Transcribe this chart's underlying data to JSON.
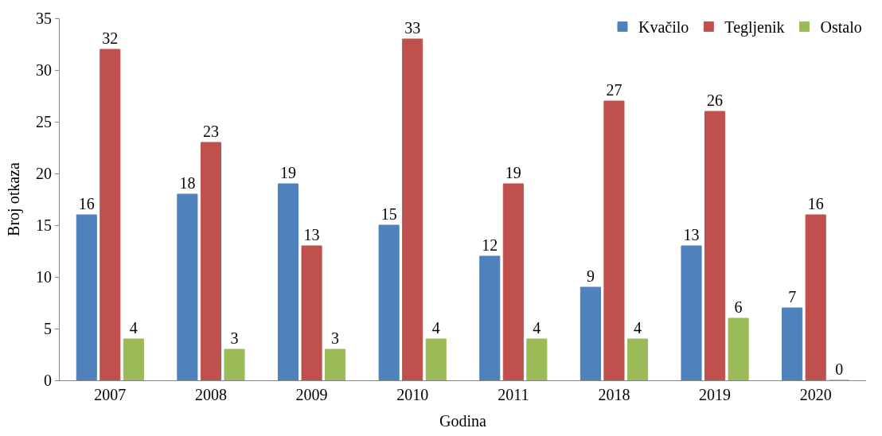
{
  "chart_data": {
    "type": "bar",
    "xlabel": "Godina",
    "ylabel": "Broj otkaza",
    "categories": [
      "2007",
      "2008",
      "2009",
      "2010",
      "2011",
      "2018",
      "2019",
      "2020"
    ],
    "series": [
      {
        "name": "Kvačilo",
        "color": "#4f81bd",
        "values": [
          16,
          18,
          19,
          15,
          12,
          9,
          13,
          7
        ]
      },
      {
        "name": "Tegljenik",
        "color": "#c0504d",
        "values": [
          32,
          23,
          13,
          33,
          19,
          27,
          26,
          16
        ]
      },
      {
        "name": "Ostalo",
        "color": "#9bbb59",
        "values": [
          4,
          3,
          3,
          4,
          4,
          4,
          6,
          0
        ]
      }
    ],
    "ylim": [
      0,
      35
    ],
    "yticks": [
      0,
      5,
      10,
      15,
      20,
      25,
      30,
      35
    ],
    "data_labels": true,
    "legend": "top right",
    "grid": false
  }
}
